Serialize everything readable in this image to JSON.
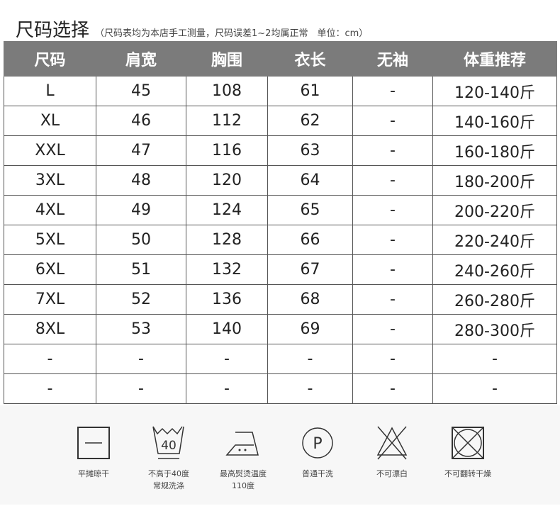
{
  "title": "尺码选择",
  "subtitle": "（尺码表均为本店手工测量，尺码误差1~2均属正常　单位：cm）",
  "table": {
    "headers": [
      "尺码",
      "肩宽",
      "胸围",
      "衣长",
      "无袖",
      "体重推荐"
    ],
    "rows": [
      [
        "L",
        "45",
        "108",
        "61",
        "-",
        "120-140斤"
      ],
      [
        "XL",
        "46",
        "112",
        "62",
        "-",
        "140-160斤"
      ],
      [
        "XXL",
        "47",
        "116",
        "63",
        "-",
        "160-180斤"
      ],
      [
        "3XL",
        "48",
        "120",
        "64",
        "-",
        "180-200斤"
      ],
      [
        "4XL",
        "49",
        "124",
        "65",
        "-",
        "200-220斤"
      ],
      [
        "5XL",
        "50",
        "128",
        "66",
        "-",
        "220-240斤"
      ],
      [
        "6XL",
        "51",
        "132",
        "67",
        "-",
        "240-260斤"
      ],
      [
        "7XL",
        "52",
        "136",
        "68",
        "-",
        "260-280斤"
      ],
      [
        "8XL",
        "53",
        "140",
        "69",
        "-",
        "280-300斤"
      ],
      [
        "-",
        "-",
        "-",
        "-",
        "-",
        "-"
      ],
      [
        "-",
        "-",
        "-",
        "-",
        "-",
        "-"
      ]
    ]
  },
  "care": [
    {
      "icon": "dry-flat-icon",
      "label": "平摊晾干"
    },
    {
      "icon": "wash-40-icon",
      "label": "不高于40度",
      "label2": "常规洗涤",
      "temp": "40"
    },
    {
      "icon": "iron-icon",
      "label": "最高熨烫温度",
      "label2": "110度"
    },
    {
      "icon": "dry-clean-p-icon",
      "label": "普通干洗",
      "letter": "P"
    },
    {
      "icon": "no-bleach-icon",
      "label": "不可漂白"
    },
    {
      "icon": "no-tumble-dry-icon",
      "label": "不可翻转干燥"
    }
  ]
}
